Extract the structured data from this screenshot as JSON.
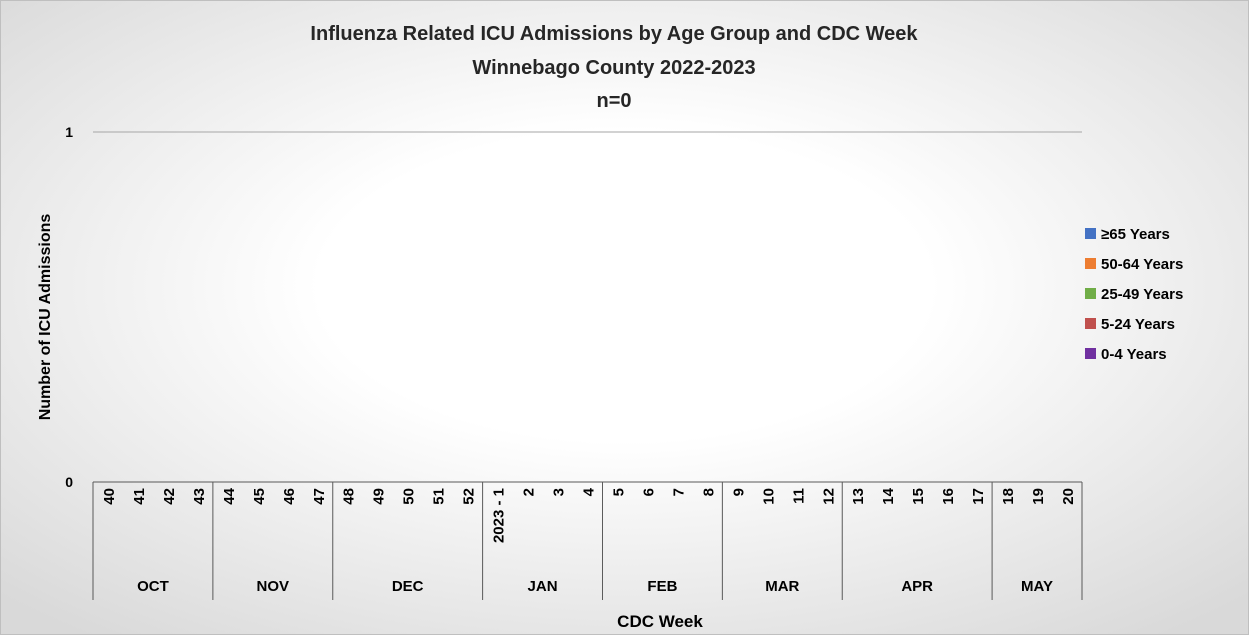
{
  "chart_data": {
    "type": "stacked_bar",
    "title": [
      "Influenza Related ICU Admissions by Age Group and CDC Week",
      "Winnebago County 2022-2023",
      "n=0"
    ],
    "x_label": "CDC Week",
    "y_label": "Number of ICU Admissions",
    "groups": [
      {
        "label": "OCT",
        "categories": [
          "40",
          "41",
          "42",
          "43"
        ]
      },
      {
        "label": "NOV",
        "categories": [
          "44",
          "45",
          "46",
          "47"
        ]
      },
      {
        "label": "DEC",
        "categories": [
          "48",
          "49",
          "50",
          "51",
          "52"
        ]
      },
      {
        "label": "JAN",
        "categories": [
          "2023 - 1",
          "2",
          "3",
          "4"
        ]
      },
      {
        "label": "FEB",
        "categories": [
          "5",
          "6",
          "7",
          "8"
        ]
      },
      {
        "label": "MAR",
        "categories": [
          "9",
          "10",
          "11",
          "12"
        ]
      },
      {
        "label": "APR",
        "categories": [
          "13",
          "14",
          "15",
          "16",
          "17"
        ]
      },
      {
        "label": "MAY",
        "categories": [
          "18",
          "19",
          "20"
        ]
      }
    ],
    "series": [
      {
        "name": "≥65 Years",
        "color": "#4472c4",
        "values": [
          0,
          0,
          0,
          0,
          0,
          0,
          0,
          0,
          0,
          0,
          0,
          0,
          0,
          0,
          0,
          0,
          0,
          0,
          0,
          0,
          0,
          0,
          0,
          0,
          0,
          0,
          0,
          0,
          0,
          0,
          0,
          0,
          0
        ]
      },
      {
        "name": "50-64 Years",
        "color": "#ed7d31",
        "values": [
          0,
          0,
          0,
          0,
          0,
          0,
          0,
          0,
          0,
          0,
          0,
          0,
          0,
          0,
          0,
          0,
          0,
          0,
          0,
          0,
          0,
          0,
          0,
          0,
          0,
          0,
          0,
          0,
          0,
          0,
          0,
          0,
          0
        ]
      },
      {
        "name": "25-49 Years",
        "color": "#70ad47",
        "values": [
          0,
          0,
          0,
          0,
          0,
          0,
          0,
          0,
          0,
          0,
          0,
          0,
          0,
          0,
          0,
          0,
          0,
          0,
          0,
          0,
          0,
          0,
          0,
          0,
          0,
          0,
          0,
          0,
          0,
          0,
          0,
          0,
          0
        ]
      },
      {
        "name": "5-24 Years",
        "color": "#c0504d",
        "values": [
          0,
          0,
          0,
          0,
          0,
          0,
          0,
          0,
          0,
          0,
          0,
          0,
          0,
          0,
          0,
          0,
          0,
          0,
          0,
          0,
          0,
          0,
          0,
          0,
          0,
          0,
          0,
          0,
          0,
          0,
          0,
          0,
          0
        ]
      },
      {
        "name": "0-4 Years",
        "color": "#7030a0",
        "values": [
          0,
          0,
          0,
          0,
          0,
          0,
          0,
          0,
          0,
          0,
          0,
          0,
          0,
          0,
          0,
          0,
          0,
          0,
          0,
          0,
          0,
          0,
          0,
          0,
          0,
          0,
          0,
          0,
          0,
          0,
          0,
          0,
          0
        ]
      }
    ],
    "ylim": [
      0,
      1
    ],
    "yticks": [
      0,
      1
    ],
    "grid": true,
    "legend": "right"
  }
}
